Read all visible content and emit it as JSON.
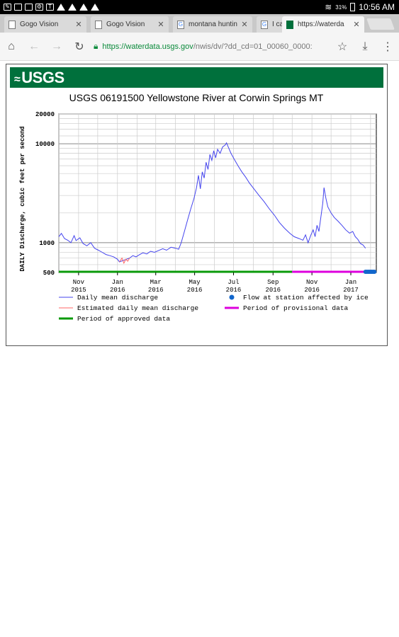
{
  "status_bar": {
    "battery": "31%",
    "time": "10:56 AM"
  },
  "tabs": [
    {
      "title": "Gogo Vision",
      "favicon": "page-icon",
      "active": false
    },
    {
      "title": "Gogo Vision",
      "favicon": "page-icon",
      "active": false
    },
    {
      "title": "montana huntin",
      "favicon": "google-icon",
      "active": false
    },
    {
      "title": "I ca",
      "favicon": "google-icon",
      "active": false
    },
    {
      "title": "https://waterda",
      "favicon": "usgs-icon",
      "active": true
    }
  ],
  "toolbar": {
    "url_secure": "https://waterdata.usgs.gov",
    "url_rest": "/nwis/dv/?dd_cd=01_00060_0000:"
  },
  "banner": {
    "logo": "USGS"
  },
  "chart_data": {
    "type": "line",
    "title": "USGS 06191500 Yellowstone River at Corwin Springs MT",
    "ylabel": "DAILY Discharge, cubic feet per second",
    "yscale": "log",
    "ylim": [
      500,
      20000
    ],
    "y_ticks": [
      500,
      1000,
      10000,
      20000
    ],
    "x_tick_labels": [
      [
        "Nov",
        "2015"
      ],
      [
        "Jan",
        "2016"
      ],
      [
        "Mar",
        "2016"
      ],
      [
        "May",
        "2016"
      ],
      [
        "Jul",
        "2016"
      ],
      [
        "Sep",
        "2016"
      ],
      [
        "Nov",
        "2016"
      ],
      [
        "Jan",
        "2017"
      ]
    ],
    "x_ticks": [
      "2015-11-01",
      "2016-01-01",
      "2016-03-01",
      "2016-05-01",
      "2016-07-01",
      "2016-09-01",
      "2016-11-01",
      "2017-01-01"
    ],
    "xlim": [
      "2015-10-01",
      "2017-02-10"
    ],
    "grid": true,
    "series": [
      {
        "name": "Daily mean discharge",
        "color": "#4444ee",
        "points": [
          [
            "2015-10-01",
            1150
          ],
          [
            "2015-10-05",
            1240
          ],
          [
            "2015-10-10",
            1100
          ],
          [
            "2015-10-15",
            1060
          ],
          [
            "2015-10-20",
            1000
          ],
          [
            "2015-10-25",
            1180
          ],
          [
            "2015-10-28",
            1050
          ],
          [
            "2015-11-03",
            1120
          ],
          [
            "2015-11-08",
            980
          ],
          [
            "2015-11-14",
            930
          ],
          [
            "2015-11-20",
            1000
          ],
          [
            "2015-11-26",
            880
          ],
          [
            "2015-12-02",
            840
          ],
          [
            "2015-12-08",
            800
          ],
          [
            "2015-12-14",
            760
          ],
          [
            "2015-12-20",
            740
          ],
          [
            "2015-12-26",
            720
          ],
          [
            "2016-01-01",
            680
          ],
          [
            "2016-01-04",
            640
          ],
          [
            "2016-01-20",
            700
          ],
          [
            "2016-01-25",
            740
          ],
          [
            "2016-01-30",
            720
          ],
          [
            "2016-02-05",
            760
          ],
          [
            "2016-02-10",
            790
          ],
          [
            "2016-02-16",
            770
          ],
          [
            "2016-02-22",
            820
          ],
          [
            "2016-02-28",
            800
          ],
          [
            "2016-03-05",
            830
          ],
          [
            "2016-03-12",
            870
          ],
          [
            "2016-03-18",
            840
          ],
          [
            "2016-03-25",
            900
          ],
          [
            "2016-04-01",
            880
          ],
          [
            "2016-04-06",
            860
          ],
          [
            "2016-04-10",
            1000
          ],
          [
            "2016-04-15",
            1300
          ],
          [
            "2016-04-20",
            1700
          ],
          [
            "2016-04-25",
            2200
          ],
          [
            "2016-04-30",
            2800
          ],
          [
            "2016-05-04",
            3600
          ],
          [
            "2016-05-07",
            4800
          ],
          [
            "2016-05-10",
            3500
          ],
          [
            "2016-05-13",
            5200
          ],
          [
            "2016-05-16",
            4500
          ],
          [
            "2016-05-19",
            6500
          ],
          [
            "2016-05-22",
            5500
          ],
          [
            "2016-05-25",
            7800
          ],
          [
            "2016-05-28",
            6800
          ],
          [
            "2016-05-31",
            8500
          ],
          [
            "2016-06-03",
            7200
          ],
          [
            "2016-06-06",
            8800
          ],
          [
            "2016-06-10",
            8000
          ],
          [
            "2016-06-14",
            9300
          ],
          [
            "2016-06-18",
            9700
          ],
          [
            "2016-06-20",
            10200
          ],
          [
            "2016-06-23",
            9200
          ],
          [
            "2016-06-27",
            8000
          ],
          [
            "2016-07-02",
            7000
          ],
          [
            "2016-07-08",
            6000
          ],
          [
            "2016-07-14",
            5200
          ],
          [
            "2016-07-20",
            4600
          ],
          [
            "2016-07-26",
            4000
          ],
          [
            "2016-08-02",
            3500
          ],
          [
            "2016-08-10",
            3000
          ],
          [
            "2016-08-18",
            2600
          ],
          [
            "2016-08-26",
            2200
          ],
          [
            "2016-09-03",
            1900
          ],
          [
            "2016-09-11",
            1600
          ],
          [
            "2016-09-19",
            1400
          ],
          [
            "2016-09-27",
            1250
          ],
          [
            "2016-10-04",
            1150
          ],
          [
            "2016-10-12",
            1100
          ],
          [
            "2016-10-18",
            1060
          ],
          [
            "2016-10-22",
            1200
          ],
          [
            "2016-10-26",
            1000
          ],
          [
            "2016-10-30",
            1180
          ],
          [
            "2016-11-03",
            1350
          ],
          [
            "2016-11-06",
            1150
          ],
          [
            "2016-11-09",
            1500
          ],
          [
            "2016-11-12",
            1300
          ],
          [
            "2016-11-15",
            1800
          ],
          [
            "2016-11-18",
            2500
          ],
          [
            "2016-11-20",
            3600
          ],
          [
            "2016-11-23",
            2800
          ],
          [
            "2016-11-26",
            2300
          ],
          [
            "2016-12-01",
            2000
          ],
          [
            "2016-12-06",
            1800
          ],
          [
            "2016-12-12",
            1650
          ],
          [
            "2016-12-18",
            1500
          ],
          [
            "2016-12-24",
            1350
          ],
          [
            "2016-12-30",
            1250
          ],
          [
            "2017-01-04",
            1300
          ],
          [
            "2017-01-08",
            1150
          ],
          [
            "2017-01-12",
            1080
          ],
          [
            "2017-01-16",
            980
          ],
          [
            "2017-01-20",
            950
          ],
          [
            "2017-01-24",
            880
          ]
        ]
      },
      {
        "name": "Estimated daily mean discharge",
        "color": "#ff6666",
        "points": [
          [
            "2016-01-04",
            640
          ],
          [
            "2016-01-08",
            700
          ],
          [
            "2016-01-11",
            620
          ],
          [
            "2016-01-14",
            680
          ],
          [
            "2016-01-17",
            650
          ],
          [
            "2016-01-20",
            700
          ]
        ]
      }
    ],
    "periods": [
      {
        "name": "Period of approved data",
        "color": "#0a9a0a",
        "from": "2015-10-01",
        "to": "2016-10-01"
      },
      {
        "name": "Period of provisional data",
        "color": "#dd00dd",
        "from": "2016-10-01",
        "to": "2017-01-24"
      }
    ],
    "ice": {
      "name": "Flow at station affected by ice",
      "color": "#1166cc",
      "from": "2017-01-24",
      "to": "2017-02-07"
    },
    "legend_position": "bottom",
    "legend": [
      {
        "label": "Daily mean discharge",
        "kind": "line",
        "color": "#4444ee"
      },
      {
        "label": "Flow at station affected by ice",
        "kind": "dot",
        "color": "#1166cc"
      },
      {
        "label": "Estimated daily mean discharge",
        "kind": "line",
        "color": "#ff6666"
      },
      {
        "label": "Period of provisional data",
        "kind": "thick",
        "color": "#dd00dd"
      },
      {
        "label": "Period of approved data",
        "kind": "thick",
        "color": "#0a9a0a"
      }
    ]
  }
}
